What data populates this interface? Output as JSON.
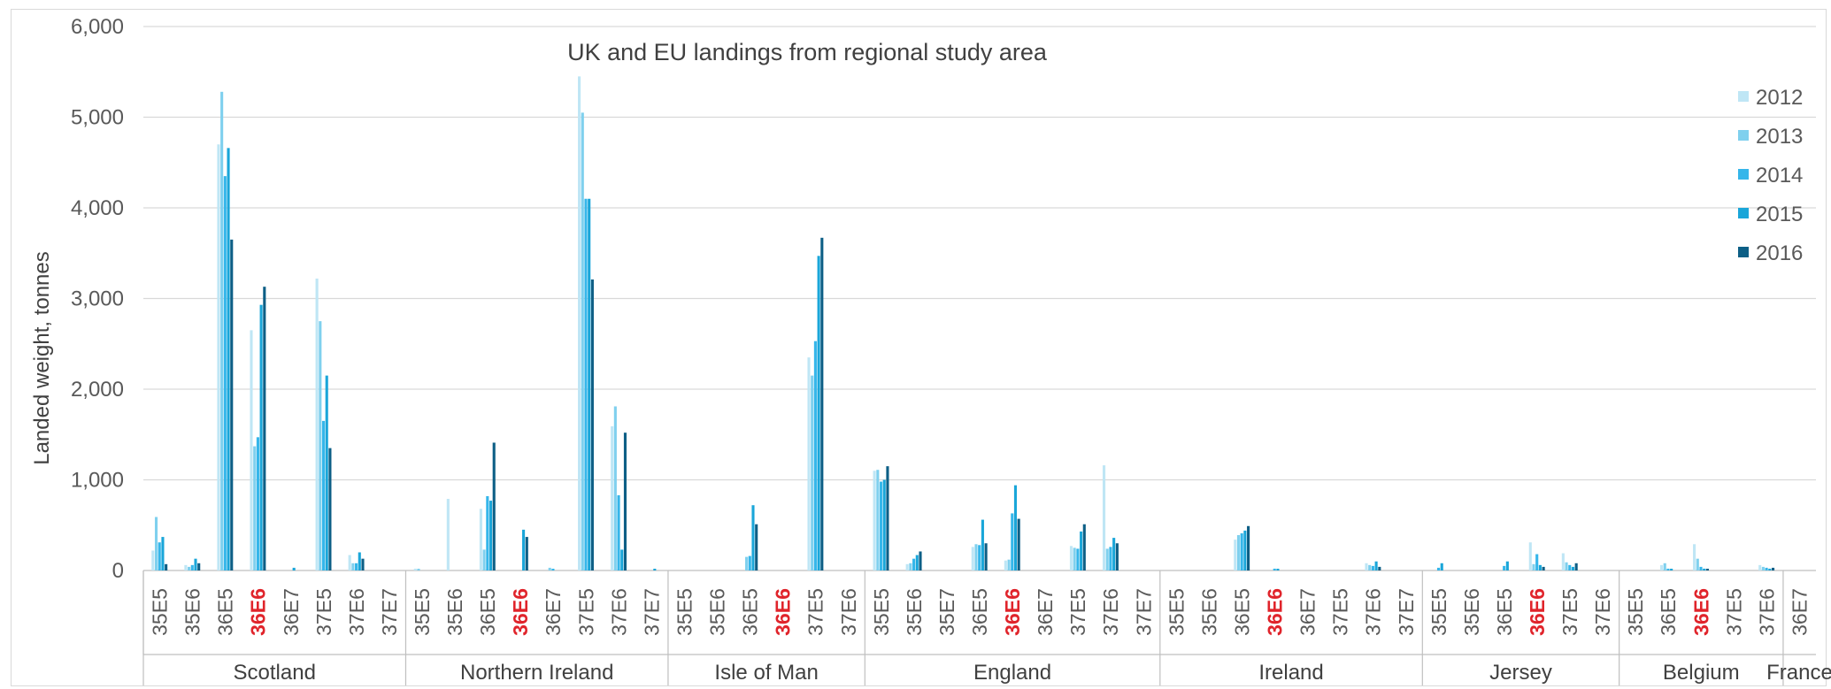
{
  "chart_data": {
    "type": "bar",
    "title": "UK and EU landings from regional study area",
    "ylabel": "Landed weight, tonnes",
    "xlabel": "",
    "ylim": [
      0,
      6000
    ],
    "yticks": [
      "0",
      "1,000",
      "2,000",
      "3,000",
      "4,000",
      "5,000",
      "6,000"
    ],
    "highlight_category": "36E6",
    "highlight_color": "#e0242b",
    "legend_position": "right",
    "series": [
      {
        "name": "2012",
        "color": "#bfe6f5"
      },
      {
        "name": "2013",
        "color": "#7fd0ee"
      },
      {
        "name": "2014",
        "color": "#35b6ea"
      },
      {
        "name": "2015",
        "color": "#1aa6d9"
      },
      {
        "name": "2016",
        "color": "#0d5f86"
      }
    ],
    "groups": [
      {
        "name": "Scotland",
        "categories": [
          {
            "label": "35E5",
            "values": [
              220,
              590,
              310,
              370,
              70
            ]
          },
          {
            "label": "35E6",
            "values": [
              60,
              40,
              60,
              130,
              80
            ]
          },
          {
            "label": "36E5",
            "values": [
              4700,
              5280,
              4350,
              4660,
              3650
            ]
          },
          {
            "label": "36E6",
            "values": [
              2650,
              1370,
              1470,
              2930,
              3130
            ]
          },
          {
            "label": "36E7",
            "values": [
              0,
              0,
              0,
              30,
              0
            ]
          },
          {
            "label": "37E5",
            "values": [
              3220,
              2750,
              1650,
              2150,
              1350
            ]
          },
          {
            "label": "37E6",
            "values": [
              170,
              80,
              80,
              200,
              130
            ]
          },
          {
            "label": "37E7",
            "values": [
              0,
              0,
              0,
              0,
              0
            ]
          }
        ]
      },
      {
        "name": "Northern Ireland",
        "categories": [
          {
            "label": "35E5",
            "values": [
              20,
              10,
              0,
              0,
              0
            ]
          },
          {
            "label": "35E6",
            "values": [
              790,
              0,
              0,
              0,
              0
            ]
          },
          {
            "label": "36E5",
            "values": [
              680,
              230,
              820,
              770,
              1410
            ]
          },
          {
            "label": "36E6",
            "values": [
              0,
              0,
              0,
              450,
              370
            ]
          },
          {
            "label": "36E7",
            "values": [
              0,
              30,
              10,
              0,
              0
            ]
          },
          {
            "label": "37E5",
            "values": [
              5450,
              5050,
              4100,
              4100,
              3210
            ]
          },
          {
            "label": "37E6",
            "values": [
              1590,
              1810,
              830,
              230,
              1520
            ]
          },
          {
            "label": "37E7",
            "values": [
              0,
              0,
              0,
              10,
              0
            ]
          }
        ]
      },
      {
        "name": "Isle of Man",
        "categories": [
          {
            "label": "35E5",
            "values": [
              0,
              0,
              0,
              0,
              0
            ]
          },
          {
            "label": "35E6",
            "values": [
              0,
              0,
              0,
              0,
              0
            ]
          },
          {
            "label": "36E5",
            "values": [
              0,
              150,
              160,
              720,
              510
            ]
          },
          {
            "label": "36E6",
            "values": [
              0,
              0,
              0,
              0,
              0
            ]
          },
          {
            "label": "37E5",
            "values": [
              2350,
              2150,
              2530,
              3470,
              3670
            ]
          },
          {
            "label": "37E6",
            "values": [
              0,
              0,
              0,
              0,
              0
            ]
          }
        ]
      },
      {
        "name": "England",
        "categories": [
          {
            "label": "35E5",
            "values": [
              1100,
              1110,
              980,
              1000,
              1150
            ]
          },
          {
            "label": "35E6",
            "values": [
              70,
              80,
              130,
              170,
              210
            ]
          },
          {
            "label": "35E7",
            "values": [
              0,
              0,
              0,
              0,
              0
            ]
          },
          {
            "label": "36E5",
            "values": [
              260,
              290,
              280,
              560,
              300
            ]
          },
          {
            "label": "36E6",
            "values": [
              110,
              120,
              630,
              940,
              570
            ]
          },
          {
            "label": "36E7",
            "values": [
              0,
              0,
              0,
              0,
              0
            ]
          },
          {
            "label": "37E5",
            "values": [
              270,
              250,
              240,
              430,
              510
            ]
          },
          {
            "label": "37E6",
            "values": [
              1160,
              240,
              260,
              360,
              300
            ]
          },
          {
            "label": "37E7",
            "values": [
              0,
              0,
              0,
              0,
              0
            ]
          }
        ]
      },
      {
        "name": "Ireland",
        "categories": [
          {
            "label": "35E5",
            "values": [
              0,
              0,
              0,
              0,
              0
            ]
          },
          {
            "label": "35E6",
            "values": [
              0,
              0,
              0,
              0,
              0
            ]
          },
          {
            "label": "36E5",
            "values": [
              340,
              390,
              410,
              440,
              490
            ]
          },
          {
            "label": "36E6",
            "values": [
              0,
              0,
              20,
              10,
              0
            ]
          },
          {
            "label": "36E7",
            "values": [
              0,
              0,
              0,
              0,
              0
            ]
          },
          {
            "label": "37E5",
            "values": [
              0,
              0,
              0,
              0,
              0
            ]
          },
          {
            "label": "37E6",
            "values": [
              80,
              60,
              50,
              100,
              40
            ]
          },
          {
            "label": "37E7",
            "values": [
              0,
              0,
              0,
              0,
              0
            ]
          }
        ]
      },
      {
        "name": "Jersey",
        "categories": [
          {
            "label": "35E5",
            "values": [
              0,
              0,
              30,
              80,
              0
            ]
          },
          {
            "label": "35E6",
            "values": [
              0,
              0,
              0,
              0,
              0
            ]
          },
          {
            "label": "36E5",
            "values": [
              0,
              0,
              50,
              100,
              0
            ]
          },
          {
            "label": "36E6",
            "values": [
              310,
              70,
              180,
              60,
              40
            ]
          },
          {
            "label": "37E5",
            "values": [
              190,
              90,
              60,
              40,
              80
            ]
          },
          {
            "label": "37E6",
            "values": [
              0,
              0,
              0,
              0,
              0
            ]
          }
        ]
      },
      {
        "name": "Belgium",
        "categories": [
          {
            "label": "35E5",
            "values": [
              0,
              0,
              0,
              0,
              0
            ]
          },
          {
            "label": "36E5",
            "values": [
              60,
              80,
              20,
              10,
              0
            ]
          },
          {
            "label": "36E6",
            "values": [
              290,
              130,
              40,
              20,
              10
            ]
          },
          {
            "label": "37E5",
            "values": [
              0,
              0,
              0,
              0,
              0
            ]
          },
          {
            "label": "37E6",
            "values": [
              60,
              40,
              30,
              20,
              30
            ]
          }
        ]
      },
      {
        "name": "France",
        "categories": [
          {
            "label": "36E7",
            "values": [
              0,
              0,
              0,
              0,
              0
            ]
          }
        ]
      }
    ]
  }
}
